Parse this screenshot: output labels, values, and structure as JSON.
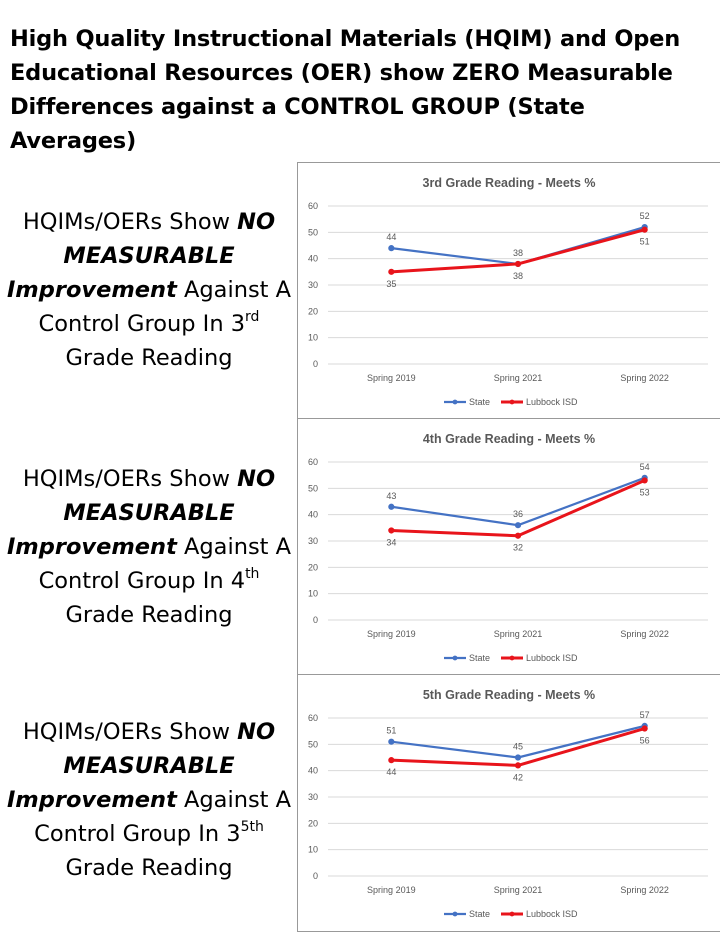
{
  "page": {
    "title": "High Quality Instructional Materials (HQIM) and Open Educational Resources (OER) show ZERO Measurable Differences against a CONTROL GROUP (State Averages)"
  },
  "claims": [
    {
      "pre": "HQIMs/OERs Show ",
      "bold1": "NO",
      "bold2": "MEASURABLE",
      "bold3": "Improvement",
      "mid": " Against A",
      "line4": "Control Group In 3",
      "sup": "rd",
      "last": "Grade Reading"
    },
    {
      "pre": "HQIMs/OERs Show ",
      "bold1": "NO",
      "bold2": "MEASURABLE",
      "bold3": "Improvement",
      "mid": " Against A",
      "line4": "Control Group In 4",
      "sup": "th",
      "last": "Grade Reading"
    },
    {
      "pre": "HQIMs/OERs Show ",
      "bold1": "NO",
      "bold2": "MEASURABLE",
      "bold3": "Improvement",
      "mid": " Against A",
      "line4": "Control Group In 3",
      "sup": "5th",
      "last": "Grade Reading"
    }
  ],
  "colors": {
    "state": "#4472C4",
    "lubbock": "#E8141B",
    "grid": "#d9d9d9",
    "text": "#595959"
  },
  "chart_data": [
    {
      "type": "line",
      "title": "3rd Grade Reading - Meets %",
      "categories": [
        "Spring 2019",
        "Spring 2021",
        "Spring 2022"
      ],
      "ylim": [
        0,
        60
      ],
      "yticks": [
        0,
        10,
        20,
        30,
        40,
        50,
        60
      ],
      "grid": true,
      "legend": "bottom",
      "series": [
        {
          "name": "State",
          "values": [
            44,
            38,
            52
          ],
          "labels": [
            "44",
            "38",
            "52"
          ]
        },
        {
          "name": "Lubbock ISD",
          "values": [
            35,
            38,
            51
          ],
          "labels": [
            "35",
            "38",
            "51"
          ]
        }
      ]
    },
    {
      "type": "line",
      "title": "4th Grade Reading  - Meets %",
      "categories": [
        "Spring 2019",
        "Spring 2021",
        "Spring 2022"
      ],
      "ylim": [
        0,
        60
      ],
      "yticks": [
        0,
        10,
        20,
        30,
        40,
        50,
        60
      ],
      "grid": true,
      "legend": "bottom",
      "series": [
        {
          "name": "State",
          "values": [
            43,
            36,
            54
          ],
          "labels": [
            "43",
            "36",
            "54"
          ]
        },
        {
          "name": "Lubbock ISD",
          "values": [
            34,
            32,
            53
          ],
          "labels": [
            "34",
            "32",
            "53"
          ]
        }
      ]
    },
    {
      "type": "line",
      "title": "5th Grade Reading  - Meets %",
      "categories": [
        "Spring 2019",
        "Spring 2021",
        "Spring 2022"
      ],
      "ylim": [
        0,
        60
      ],
      "yticks": [
        0,
        10,
        20,
        30,
        40,
        50,
        60
      ],
      "grid": true,
      "legend": "bottom",
      "series": [
        {
          "name": "State",
          "values": [
            51,
            45,
            57
          ],
          "labels": [
            "51",
            "45",
            "57"
          ]
        },
        {
          "name": "Lubbock ISD",
          "values": [
            44,
            42,
            56
          ],
          "labels": [
            "44",
            "42",
            "56"
          ]
        }
      ]
    }
  ]
}
